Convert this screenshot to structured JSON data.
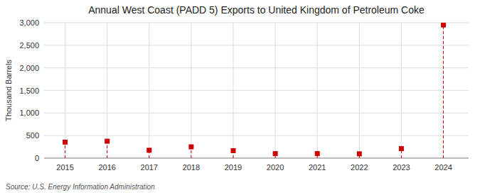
{
  "chart_data": {
    "type": "scatter",
    "title": "Annual West Coast (PADD 5) Exports to United Kingdom of Petroleum Coke",
    "ylabel": "Thousand Barrels",
    "annotations": [
      "Source: U.S. Energy Information Administration"
    ],
    "x": [
      2015,
      2016,
      2017,
      2018,
      2019,
      2020,
      2021,
      2022,
      2023,
      2024
    ],
    "values": [
      355,
      375,
      175,
      250,
      165,
      100,
      100,
      95,
      210,
      2950
    ],
    "color": "#cc0000",
    "marker": "square",
    "line_style": "dashed",
    "xlim": [
      2014.5,
      2024.6
    ],
    "xticks": [
      2015,
      2016,
      2017,
      2018,
      2019,
      2020,
      2021,
      2022,
      2023,
      2024
    ],
    "ylim": [
      0,
      3000
    ],
    "yticks": [
      0,
      500,
      {
        "value": 1000,
        "label": "1,000"
      },
      {
        "value": 1500,
        "label": "1,500"
      },
      {
        "value": 2000,
        "label": "2,000"
      },
      {
        "value": 2500,
        "label": "2,500"
      },
      {
        "value": 3000,
        "label": "3,000"
      }
    ],
    "grid": true
  }
}
